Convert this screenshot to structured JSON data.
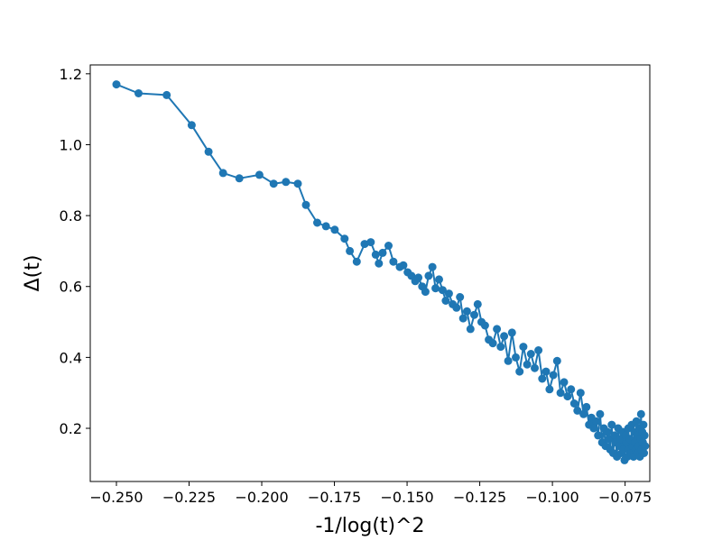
{
  "chart_data": {
    "type": "line",
    "title": "",
    "xlabel": "-1/log(t)^2",
    "ylabel": "Δ(t)",
    "xlim": [
      -0.259,
      -0.0665
    ],
    "ylim": [
      0.05,
      1.225
    ],
    "xticks": [
      -0.25,
      -0.225,
      -0.2,
      -0.175,
      -0.15,
      -0.125,
      -0.1,
      -0.075
    ],
    "xtick_labels": [
      "−0.250",
      "−0.225",
      "−0.200",
      "−0.175",
      "−0.150",
      "−0.125",
      "−0.100",
      "−0.075"
    ],
    "yticks": [
      0.2,
      0.4,
      0.6,
      0.8,
      1.0,
      1.2
    ],
    "ytick_labels": [
      "0.2",
      "0.4",
      "0.6",
      "0.8",
      "1.0",
      "1.2"
    ],
    "grid": false,
    "markers": true,
    "series": [
      {
        "color": "#1f77b4",
        "x": [
          -0.25,
          -0.2424,
          -0.2327,
          -0.2241,
          -0.2183,
          -0.2133,
          -0.2077,
          -0.2008,
          -0.1959,
          -0.1917,
          -0.1876,
          -0.1848,
          -0.1809,
          -0.1779,
          -0.1749,
          -0.1715,
          -0.1697,
          -0.1673,
          -0.1646,
          -0.1625,
          -0.1608,
          -0.1597,
          -0.1584,
          -0.1564,
          -0.1547,
          -0.1525,
          -0.1513,
          -0.1498,
          -0.1485,
          -0.1472,
          -0.1461,
          -0.1448,
          -0.1437,
          -0.1426,
          -0.1413,
          -0.1402,
          -0.139,
          -0.1378,
          -0.1367,
          -0.1356,
          -0.1343,
          -0.133,
          -0.1318,
          -0.1307,
          -0.1294,
          -0.1282,
          -0.1269,
          -0.1257,
          -0.1244,
          -0.1232,
          -0.1219,
          -0.1205,
          -0.1191,
          -0.1178,
          -0.1166,
          -0.1152,
          -0.1139,
          -0.1126,
          -0.1113,
          -0.11,
          -0.1087,
          -0.1074,
          -0.1061,
          -0.1048,
          -0.1035,
          -0.1022,
          -0.101,
          -0.0997,
          -0.0984,
          -0.0972,
          -0.096,
          -0.0948,
          -0.0936,
          -0.0925,
          -0.0914,
          -0.0903,
          -0.0893,
          -0.0883,
          -0.0874,
          -0.0866,
          -0.0858,
          -0.085,
          -0.0843,
          -0.0836,
          -0.0829,
          -0.0823,
          -0.0817,
          -0.0811,
          -0.0806,
          -0.0801,
          -0.0796,
          -0.0791,
          -0.0786,
          -0.0782,
          -0.0778,
          -0.0774,
          -0.077,
          -0.0766,
          -0.0762,
          -0.0758,
          -0.0755,
          -0.0752,
          -0.0748,
          -0.0745,
          -0.0742,
          -0.0739,
          -0.0736,
          -0.0733,
          -0.073,
          -0.0727,
          -0.0724,
          -0.0721,
          -0.0718,
          -0.0716,
          -0.0713,
          -0.0711,
          -0.0708,
          -0.0706,
          -0.0703,
          -0.0701,
          -0.0699,
          -0.0697,
          -0.0695,
          -0.0693,
          -0.0691,
          -0.0689,
          -0.0687,
          -0.0685,
          -0.0683,
          -0.0681
        ],
        "y": [
          1.17,
          1.145,
          1.14,
          1.055,
          0.98,
          0.92,
          0.905,
          0.915,
          0.89,
          0.895,
          0.89,
          0.83,
          0.78,
          0.77,
          0.76,
          0.735,
          0.7,
          0.67,
          0.72,
          0.725,
          0.69,
          0.665,
          0.695,
          0.715,
          0.67,
          0.655,
          0.66,
          0.64,
          0.63,
          0.615,
          0.625,
          0.6,
          0.585,
          0.63,
          0.655,
          0.595,
          0.62,
          0.59,
          0.56,
          0.58,
          0.55,
          0.54,
          0.57,
          0.51,
          0.53,
          0.48,
          0.52,
          0.55,
          0.5,
          0.49,
          0.45,
          0.44,
          0.48,
          0.43,
          0.46,
          0.39,
          0.47,
          0.4,
          0.36,
          0.43,
          0.38,
          0.41,
          0.37,
          0.42,
          0.34,
          0.36,
          0.31,
          0.35,
          0.39,
          0.3,
          0.33,
          0.29,
          0.31,
          0.27,
          0.25,
          0.3,
          0.24,
          0.26,
          0.21,
          0.23,
          0.2,
          0.22,
          0.18,
          0.24,
          0.16,
          0.2,
          0.15,
          0.19,
          0.17,
          0.14,
          0.21,
          0.13,
          0.18,
          0.16,
          0.12,
          0.2,
          0.15,
          0.17,
          0.13,
          0.19,
          0.14,
          0.11,
          0.18,
          0.16,
          0.12,
          0.2,
          0.14,
          0.17,
          0.13,
          0.21,
          0.15,
          0.12,
          0.19,
          0.16,
          0.14,
          0.22,
          0.13,
          0.18,
          0.15,
          0.2,
          0.12,
          0.17,
          0.24,
          0.14,
          0.19,
          0.16,
          0.21,
          0.13,
          0.18,
          0.15
        ]
      }
    ]
  }
}
